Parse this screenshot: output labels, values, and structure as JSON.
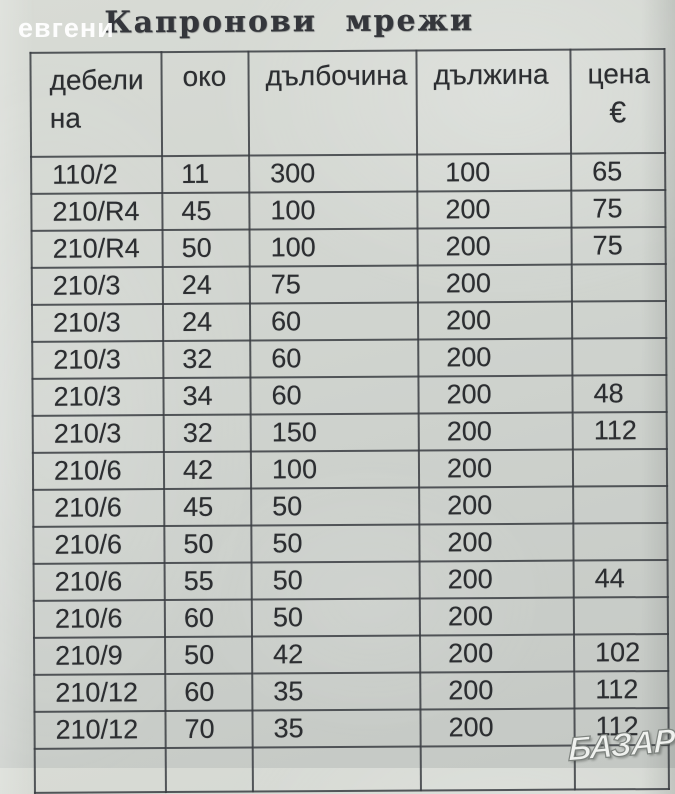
{
  "watermarks": {
    "top_left": "евгени",
    "bottom_right": "БАЗАР"
  },
  "title": "Капронови мрежи",
  "table": {
    "headers": [
      "дебели на",
      "око",
      "дълбочина",
      "дължина",
      "цена"
    ],
    "price_currency": "€",
    "rows": [
      [
        "110/2",
        "11",
        "300",
        "100",
        "65"
      ],
      [
        "210/R4",
        "45",
        "100",
        "200",
        "75"
      ],
      [
        "210/R4",
        "50",
        "100",
        "200",
        "75"
      ],
      [
        "210/3",
        "24",
        "75",
        "200",
        ""
      ],
      [
        "210/3",
        "24",
        "60",
        "200",
        ""
      ],
      [
        "210/3",
        "32",
        "60",
        "200",
        ""
      ],
      [
        "210/3",
        "34",
        "60",
        "200",
        "48"
      ],
      [
        "210/3",
        "32",
        "150",
        "200",
        "112"
      ],
      [
        "210/6",
        "42",
        "100",
        "200",
        ""
      ],
      [
        "210/6",
        "45",
        "50",
        "200",
        ""
      ],
      [
        "210/6",
        "50",
        "50",
        "200",
        ""
      ],
      [
        "210/6",
        "55",
        "50",
        "200",
        "44"
      ],
      [
        "210/6",
        "60",
        "50",
        "200",
        ""
      ],
      [
        "210/9",
        "50",
        "42",
        "200",
        "102"
      ],
      [
        "210/12",
        "60",
        "35",
        "200",
        "112"
      ],
      [
        "210/12",
        "70",
        "35",
        "200",
        "112"
      ],
      [
        "",
        "",
        "",
        "",
        ""
      ]
    ]
  },
  "colors": {
    "paper": "#d0d4cf",
    "ink": "#2c2e31",
    "grid_line": "#3a3d42",
    "watermark": "#ffffff"
  }
}
